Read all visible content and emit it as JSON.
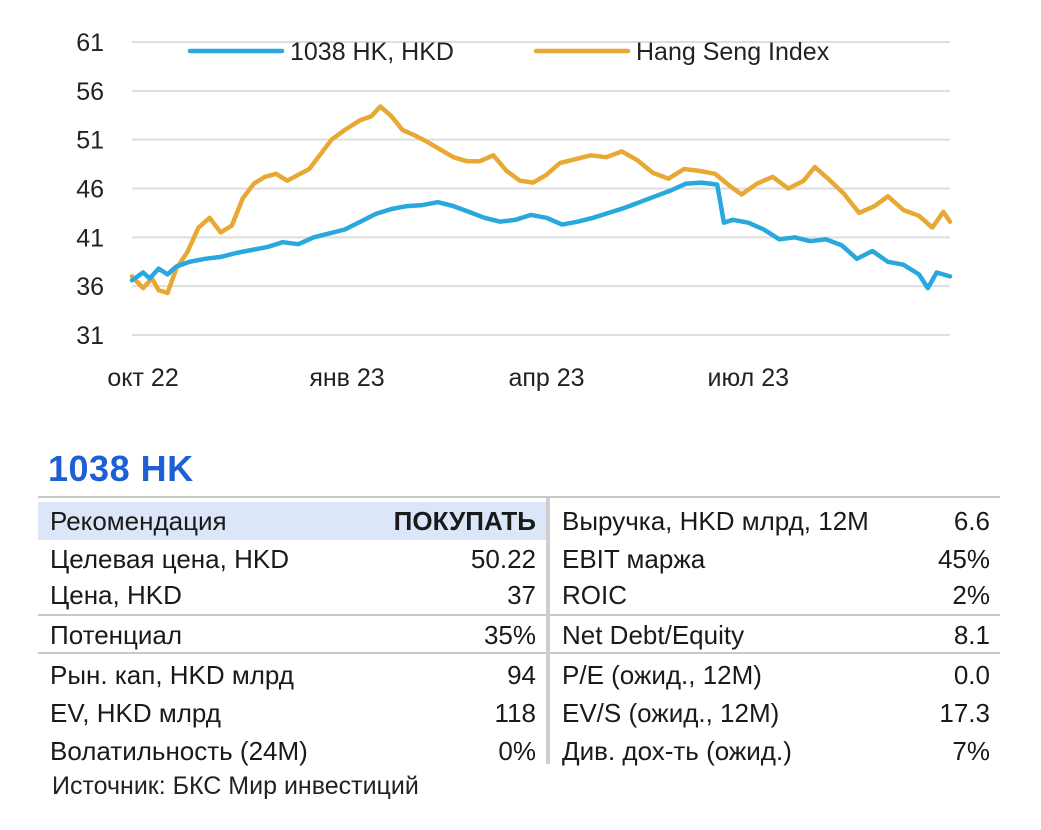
{
  "chart_data": {
    "type": "line",
    "ylim": [
      31,
      61
    ],
    "yticks": [
      31,
      36,
      41,
      46,
      51,
      56,
      61
    ],
    "grid": true,
    "legend_position": "top",
    "x_tick_labels": [
      "окт 22",
      "янв 23",
      "апр 23",
      "июл 23"
    ],
    "x_tick_dates": [
      "2022-10-01",
      "2023-01-01",
      "2023-04-01",
      "2023-07-01"
    ],
    "x_range": [
      "2022-09-26",
      "2023-09-30"
    ],
    "series": [
      {
        "name": "1038 HK, HKD",
        "color": "#29a8de",
        "points": [
          [
            "2022-09-26",
            36.6
          ],
          [
            "2022-10-01",
            37.4
          ],
          [
            "2022-10-04",
            36.8
          ],
          [
            "2022-10-08",
            37.8
          ],
          [
            "2022-10-12",
            37.2
          ],
          [
            "2022-10-16",
            38.0
          ],
          [
            "2022-10-22",
            38.5
          ],
          [
            "2022-10-29",
            38.8
          ],
          [
            "2022-11-05",
            39.0
          ],
          [
            "2022-11-12",
            39.4
          ],
          [
            "2022-11-19",
            39.7
          ],
          [
            "2022-11-26",
            40.0
          ],
          [
            "2022-12-03",
            40.5
          ],
          [
            "2022-12-10",
            40.3
          ],
          [
            "2022-12-17",
            41.0
          ],
          [
            "2022-12-24",
            41.4
          ],
          [
            "2022-12-31",
            41.8
          ],
          [
            "2023-01-07",
            42.6
          ],
          [
            "2023-01-14",
            43.4
          ],
          [
            "2023-01-21",
            43.9
          ],
          [
            "2023-01-28",
            44.2
          ],
          [
            "2023-02-04",
            44.3
          ],
          [
            "2023-02-11",
            44.6
          ],
          [
            "2023-02-18",
            44.2
          ],
          [
            "2023-02-25",
            43.6
          ],
          [
            "2023-03-04",
            43.0
          ],
          [
            "2023-03-11",
            42.6
          ],
          [
            "2023-03-18",
            42.8
          ],
          [
            "2023-03-25",
            43.3
          ],
          [
            "2023-04-01",
            43.0
          ],
          [
            "2023-04-08",
            42.3
          ],
          [
            "2023-04-15",
            42.6
          ],
          [
            "2023-04-22",
            43.0
          ],
          [
            "2023-04-29",
            43.5
          ],
          [
            "2023-05-06",
            44.0
          ],
          [
            "2023-05-13",
            44.6
          ],
          [
            "2023-05-20",
            45.2
          ],
          [
            "2023-05-27",
            45.8
          ],
          [
            "2023-06-03",
            46.5
          ],
          [
            "2023-06-10",
            46.6
          ],
          [
            "2023-06-17",
            46.4
          ],
          [
            "2023-06-20",
            42.5
          ],
          [
            "2023-06-24",
            42.8
          ],
          [
            "2023-07-01",
            42.5
          ],
          [
            "2023-07-08",
            41.8
          ],
          [
            "2023-07-15",
            40.8
          ],
          [
            "2023-07-22",
            41.0
          ],
          [
            "2023-07-29",
            40.6
          ],
          [
            "2023-08-05",
            40.8
          ],
          [
            "2023-08-12",
            40.2
          ],
          [
            "2023-08-19",
            38.8
          ],
          [
            "2023-08-26",
            39.6
          ],
          [
            "2023-09-02",
            38.5
          ],
          [
            "2023-09-09",
            38.2
          ],
          [
            "2023-09-16",
            37.2
          ],
          [
            "2023-09-20",
            35.8
          ],
          [
            "2023-09-24",
            37.4
          ],
          [
            "2023-09-30",
            37.0
          ]
        ]
      },
      {
        "name": "Hang Seng Index",
        "color": "#e8a834",
        "points": [
          [
            "2022-09-26",
            37.0
          ],
          [
            "2022-10-01",
            35.8
          ],
          [
            "2022-10-05",
            36.8
          ],
          [
            "2022-10-08",
            35.6
          ],
          [
            "2022-10-12",
            35.3
          ],
          [
            "2022-10-16",
            37.8
          ],
          [
            "2022-10-21",
            39.5
          ],
          [
            "2022-10-26",
            42.0
          ],
          [
            "2022-10-31",
            43.0
          ],
          [
            "2022-11-05",
            41.5
          ],
          [
            "2022-11-10",
            42.2
          ],
          [
            "2022-11-15",
            45.0
          ],
          [
            "2022-11-20",
            46.5
          ],
          [
            "2022-11-25",
            47.2
          ],
          [
            "2022-11-30",
            47.5
          ],
          [
            "2022-12-05",
            46.8
          ],
          [
            "2022-12-10",
            47.4
          ],
          [
            "2022-12-15",
            48.0
          ],
          [
            "2022-12-20",
            49.5
          ],
          [
            "2022-12-25",
            51.0
          ],
          [
            "2022-12-31",
            52.0
          ],
          [
            "2023-01-07",
            53.0
          ],
          [
            "2023-01-12",
            53.4
          ],
          [
            "2023-01-16",
            54.4
          ],
          [
            "2023-01-21",
            53.4
          ],
          [
            "2023-01-26",
            52.0
          ],
          [
            "2023-01-31",
            51.5
          ],
          [
            "2023-02-06",
            50.8
          ],
          [
            "2023-02-12",
            50.0
          ],
          [
            "2023-02-18",
            49.2
          ],
          [
            "2023-02-24",
            48.8
          ],
          [
            "2023-03-02",
            48.8
          ],
          [
            "2023-03-08",
            49.4
          ],
          [
            "2023-03-14",
            47.8
          ],
          [
            "2023-03-20",
            46.8
          ],
          [
            "2023-03-26",
            46.6
          ],
          [
            "2023-04-01",
            47.4
          ],
          [
            "2023-04-07",
            48.6
          ],
          [
            "2023-04-14",
            49.0
          ],
          [
            "2023-04-21",
            49.4
          ],
          [
            "2023-04-28",
            49.2
          ],
          [
            "2023-05-05",
            49.8
          ],
          [
            "2023-05-12",
            48.9
          ],
          [
            "2023-05-19",
            47.6
          ],
          [
            "2023-05-26",
            47.0
          ],
          [
            "2023-06-02",
            48.0
          ],
          [
            "2023-06-09",
            47.8
          ],
          [
            "2023-06-16",
            47.5
          ],
          [
            "2023-06-23",
            46.2
          ],
          [
            "2023-06-28",
            45.4
          ],
          [
            "2023-07-05",
            46.5
          ],
          [
            "2023-07-12",
            47.2
          ],
          [
            "2023-07-19",
            46.0
          ],
          [
            "2023-07-26",
            46.8
          ],
          [
            "2023-07-31",
            48.2
          ],
          [
            "2023-08-06",
            47.0
          ],
          [
            "2023-08-13",
            45.5
          ],
          [
            "2023-08-20",
            43.5
          ],
          [
            "2023-08-27",
            44.2
          ],
          [
            "2023-09-02",
            45.2
          ],
          [
            "2023-09-09",
            43.8
          ],
          [
            "2023-09-16",
            43.2
          ],
          [
            "2023-09-22",
            42.0
          ],
          [
            "2023-09-27",
            43.6
          ],
          [
            "2023-09-30",
            42.6
          ]
        ]
      }
    ]
  },
  "ticker": "1038 HK",
  "metrics": {
    "left": [
      {
        "label": "Рекомендация",
        "value": "ПОКУПАТЬ"
      },
      {
        "label": "Целевая цена, HKD",
        "value": "50.22"
      },
      {
        "label": "Цена, HKD",
        "value": "37"
      },
      {
        "label": "Потенциал",
        "value": "35%"
      },
      {
        "label": "Рын. кап, HKD млрд",
        "value": "94"
      },
      {
        "label": "EV, HKD млрд",
        "value": "118"
      },
      {
        "label": "Волатильность (24M)",
        "value": "0%"
      }
    ],
    "right": [
      {
        "label": "Выручка, HKD млрд, 12M",
        "value": "6.6"
      },
      {
        "label": "EBIT маржа",
        "value": "45%"
      },
      {
        "label": "ROIC",
        "value": "2%"
      },
      {
        "label": "Net Debt/Equity",
        "value": "8.1"
      },
      {
        "label": "P/E (ожид., 12M)",
        "value": "0.0"
      },
      {
        "label": "EV/S (ожид., 12M)",
        "value": "17.3"
      },
      {
        "label": "Див. дох-ть (ожид.)",
        "value": "7%"
      }
    ]
  },
  "source": "Источник: БКС Мир инвестиций"
}
